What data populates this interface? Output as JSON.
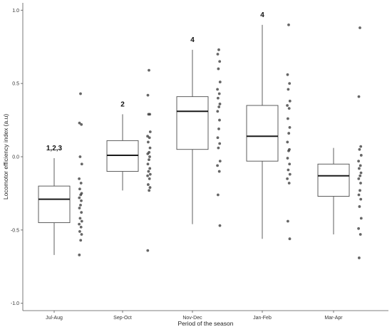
{
  "chart_data": {
    "type": "box",
    "xlabel": "Period of the season",
    "ylabel": "Locomotor efficiency index (a.u)",
    "ylim": [
      -1.05,
      1.05
    ],
    "yticks": [
      -1.0,
      -0.5,
      0.0,
      0.5,
      1.0
    ],
    "ytick_labels": [
      "-1.0",
      "-0.5",
      "0.0",
      "0.5",
      "1.0"
    ],
    "categories": [
      "Jul-Aug",
      "Sep-Oct",
      "Nov-Dec",
      "Jan-Feb",
      "Mar-Apr"
    ],
    "boxes": [
      {
        "category": "Jul-Aug",
        "whisker_low": -0.67,
        "q1": -0.45,
        "median": -0.29,
        "q3": -0.2,
        "whisker_high": -0.01,
        "annotation": "1,2,3",
        "points": [
          0.43,
          0.23,
          0.22,
          0.0,
          -0.05,
          -0.15,
          -0.18,
          -0.22,
          -0.25,
          -0.26,
          -0.28,
          -0.3,
          -0.33,
          -0.35,
          -0.38,
          -0.42,
          -0.44,
          -0.46,
          -0.48,
          -0.51,
          -0.53,
          -0.57,
          -0.67
        ]
      },
      {
        "category": "Sep-Oct",
        "whisker_low": -0.23,
        "q1": -0.1,
        "median": 0.01,
        "q3": 0.11,
        "whisker_high": 0.29,
        "annotation": "2",
        "points": [
          0.59,
          0.42,
          0.29,
          0.29,
          0.17,
          0.14,
          0.13,
          0.1,
          0.06,
          0.03,
          0.02,
          0.0,
          -0.02,
          -0.05,
          -0.08,
          -0.1,
          -0.12,
          -0.13,
          -0.15,
          -0.19,
          -0.21,
          -0.23,
          -0.64
        ]
      },
      {
        "category": "Nov-Dec",
        "whisker_low": -0.46,
        "q1": 0.05,
        "median": 0.31,
        "q3": 0.41,
        "whisker_high": 0.73,
        "annotation": "4",
        "points": [
          0.73,
          0.7,
          0.65,
          0.6,
          0.51,
          0.46,
          0.43,
          0.4,
          0.36,
          0.34,
          0.31,
          0.25,
          0.19,
          0.13,
          0.09,
          0.06,
          -0.03,
          -0.06,
          -0.1,
          -0.26,
          -0.47
        ]
      },
      {
        "category": "Jan-Feb",
        "whisker_low": -0.56,
        "q1": -0.03,
        "median": 0.14,
        "q3": 0.35,
        "whisker_high": 0.9,
        "annotation": "4",
        "points": [
          0.9,
          0.56,
          0.5,
          0.46,
          0.38,
          0.35,
          0.33,
          0.26,
          0.2,
          0.16,
          0.1,
          0.05,
          0.04,
          -0.01,
          -0.05,
          -0.09,
          -0.12,
          -0.15,
          -0.18,
          -0.44,
          -0.56
        ]
      },
      {
        "category": "Mar-Apr",
        "whisker_low": -0.53,
        "q1": -0.27,
        "median": -0.13,
        "q3": -0.05,
        "whisker_high": 0.06,
        "annotation": "",
        "points": [
          0.88,
          0.41,
          0.07,
          0.05,
          0.01,
          -0.03,
          -0.06,
          -0.08,
          -0.11,
          -0.13,
          -0.15,
          -0.18,
          -0.23,
          -0.26,
          -0.29,
          -0.34,
          -0.42,
          -0.49,
          -0.53,
          -0.69
        ]
      }
    ],
    "colors": {
      "box_stroke": "#4d4d4d",
      "median": "#1a1a1a",
      "point": "#333333",
      "axis": "#555555"
    },
    "grid": false,
    "legend": "none"
  }
}
